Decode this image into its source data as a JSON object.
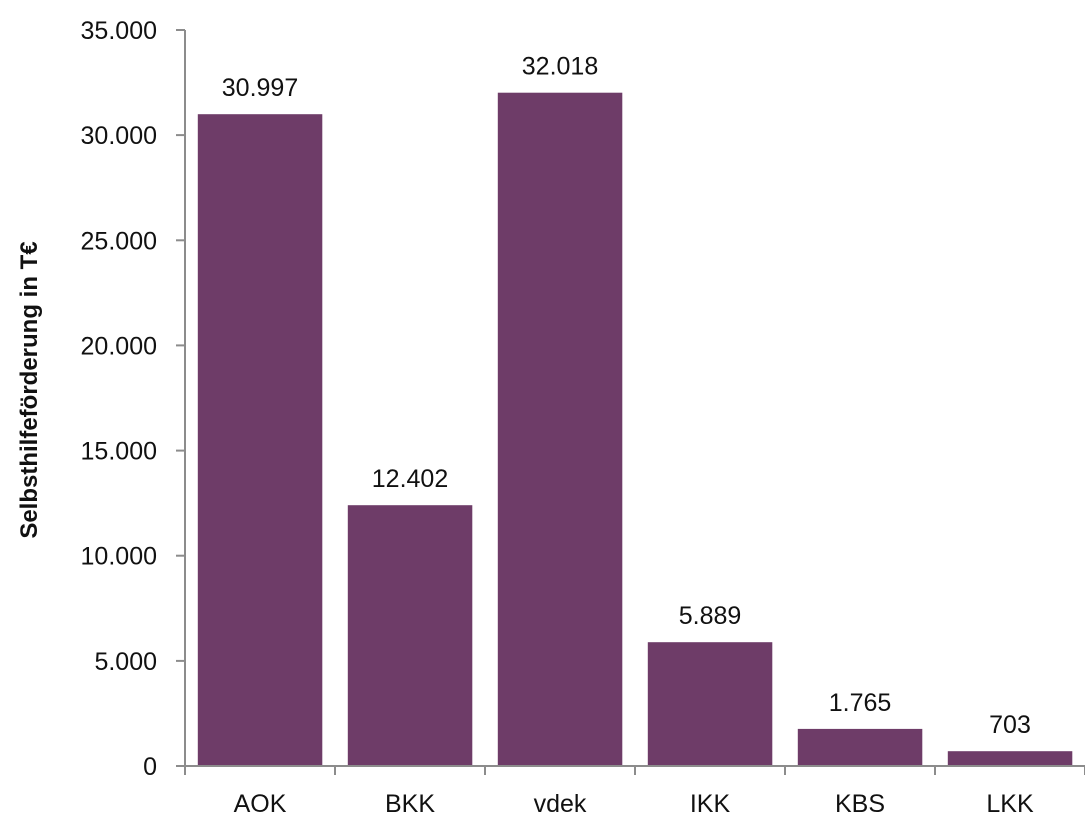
{
  "chart_data": {
    "type": "bar",
    "categories": [
      "AOK",
      "BKK",
      "vdek",
      "IKK",
      "KBS",
      "LKK"
    ],
    "values": [
      30997,
      12402,
      32018,
      5889,
      1765,
      703
    ],
    "value_labels": [
      "30.997",
      "12.402",
      "32.018",
      "5.889",
      "1.765",
      "703"
    ],
    "xlabel": "",
    "ylabel": "Selbsthilfeförderung in T€",
    "ylim": [
      0,
      35000
    ],
    "yticks": [
      0,
      5000,
      10000,
      15000,
      20000,
      25000,
      30000,
      35000
    ],
    "ytick_labels": [
      "0",
      "5.000",
      "10.000",
      "15.000",
      "20.000",
      "25.000",
      "30.000",
      "35.000"
    ],
    "grid": false,
    "legend": "none",
    "bar_color": "#6e3c68",
    "axis_color": "#8c8c8c"
  }
}
